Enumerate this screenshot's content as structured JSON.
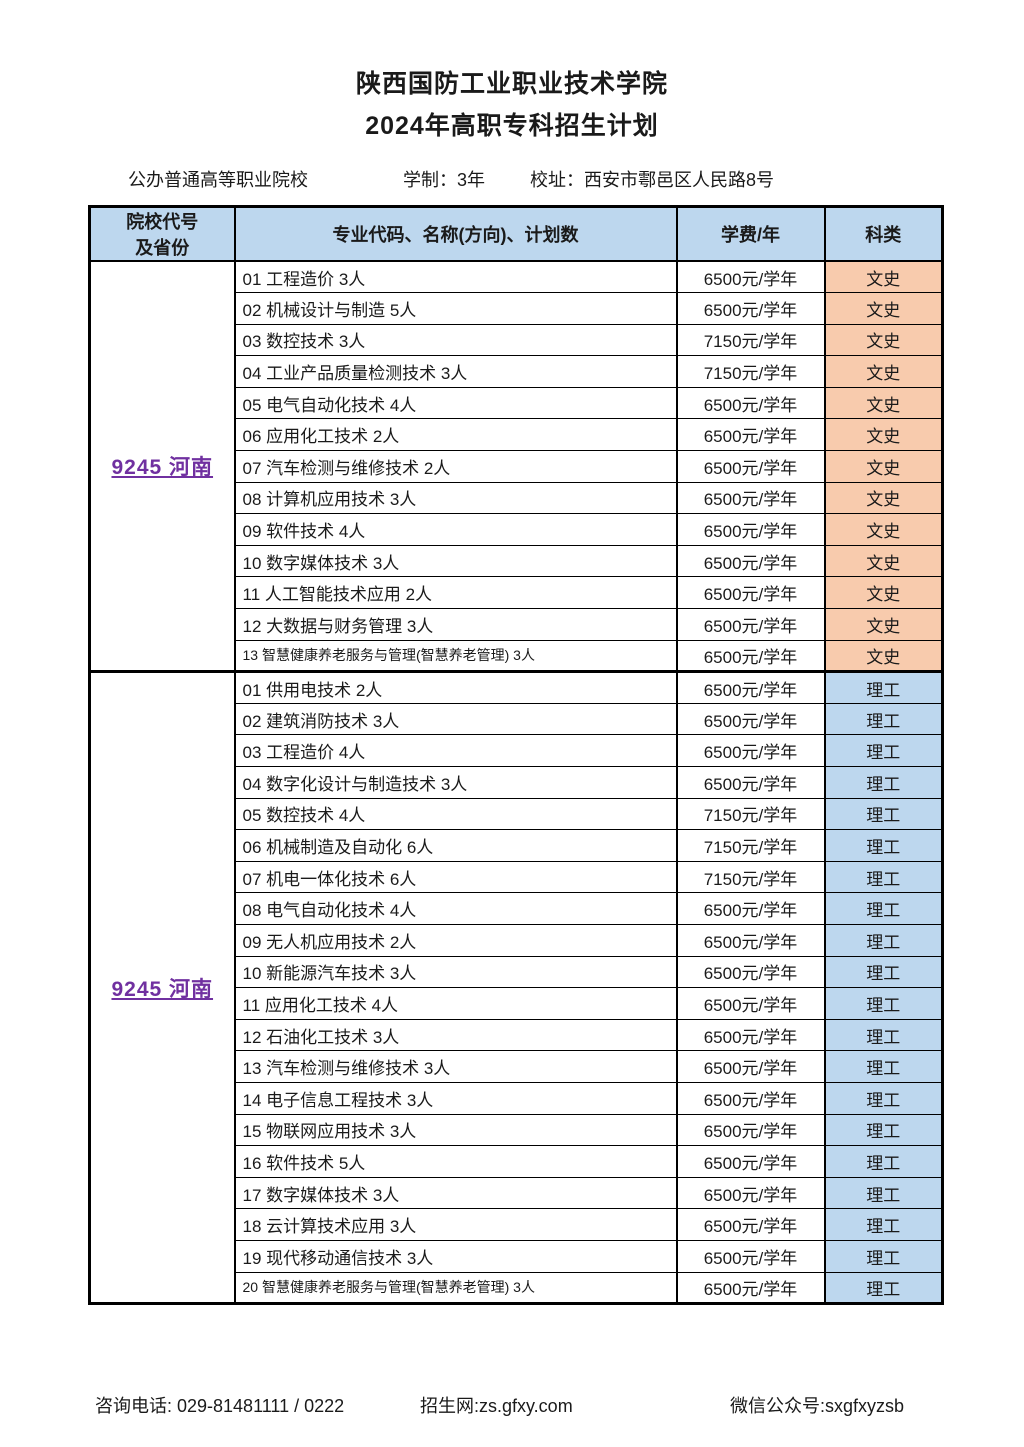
{
  "page": {
    "title": "陕西国防工业职业技术学院",
    "subtitle": "2024年高职专科招生计划"
  },
  "info": {
    "school_type": "公办普通高等职业院校",
    "duration": "学制：3年",
    "address": "校址：西安市鄠邑区人民路8号"
  },
  "colors": {
    "header_bg": "#BDD7EE",
    "wenshi_bg": "#F8CBAD",
    "ligong_bg": "#BDD7EE",
    "college_code_text": "#7030A0",
    "border": "#000000"
  },
  "table": {
    "headers": {
      "college_line1": "院校代号",
      "college_line2": "及省份",
      "major": "专业代码、名称(方向)、计划数",
      "tuition": "学费/年",
      "category": "科类"
    },
    "sections": [
      {
        "college": "9245 河南",
        "category": "文史",
        "category_bg": "#F8CBAD",
        "rows": [
          {
            "major": "01 工程造价 3人",
            "tuition": "6500元/学年"
          },
          {
            "major": "02 机械设计与制造 5人",
            "tuition": "6500元/学年"
          },
          {
            "major": "03 数控技术 3人",
            "tuition": "7150元/学年"
          },
          {
            "major": "04 工业产品质量检测技术 3人",
            "tuition": "7150元/学年"
          },
          {
            "major": "05 电气自动化技术 4人",
            "tuition": "6500元/学年"
          },
          {
            "major": "06 应用化工技术 2人",
            "tuition": "6500元/学年"
          },
          {
            "major": "07 汽车检测与维修技术 2人",
            "tuition": "6500元/学年"
          },
          {
            "major": "08 计算机应用技术 3人",
            "tuition": "6500元/学年"
          },
          {
            "major": "09 软件技术 4人",
            "tuition": "6500元/学年"
          },
          {
            "major": "10 数字媒体技术 3人",
            "tuition": "6500元/学年"
          },
          {
            "major": "11 人工智能技术应用 2人",
            "tuition": "6500元/学年"
          },
          {
            "major": "12 大数据与财务管理 3人",
            "tuition": "6500元/学年"
          },
          {
            "major": "13 智慧健康养老服务与管理(智慧养老管理) 3人",
            "tuition": "6500元/学年",
            "small": true
          }
        ]
      },
      {
        "college": "9245 河南",
        "category": "理工",
        "category_bg": "#BDD7EE",
        "rows": [
          {
            "major": "01 供用电技术 2人",
            "tuition": "6500元/学年"
          },
          {
            "major": "02 建筑消防技术 3人",
            "tuition": "6500元/学年"
          },
          {
            "major": "03 工程造价 4人",
            "tuition": "6500元/学年"
          },
          {
            "major": "04 数字化设计与制造技术 3人",
            "tuition": "6500元/学年"
          },
          {
            "major": "05 数控技术 4人",
            "tuition": "7150元/学年"
          },
          {
            "major": "06 机械制造及自动化 6人",
            "tuition": "7150元/学年"
          },
          {
            "major": "07 机电一体化技术 6人",
            "tuition": "7150元/学年"
          },
          {
            "major": "08 电气自动化技术 4人",
            "tuition": "6500元/学年"
          },
          {
            "major": "09 无人机应用技术 2人",
            "tuition": "6500元/学年"
          },
          {
            "major": "10 新能源汽车技术 3人",
            "tuition": "6500元/学年"
          },
          {
            "major": "11 应用化工技术 4人",
            "tuition": "6500元/学年"
          },
          {
            "major": "12 石油化工技术 3人",
            "tuition": "6500元/学年"
          },
          {
            "major": "13 汽车检测与维修技术 3人",
            "tuition": "6500元/学年"
          },
          {
            "major": "14 电子信息工程技术 3人",
            "tuition": "6500元/学年"
          },
          {
            "major": "15 物联网应用技术 3人",
            "tuition": "6500元/学年"
          },
          {
            "major": "16 软件技术 5人",
            "tuition": "6500元/学年"
          },
          {
            "major": "17 数字媒体技术 3人",
            "tuition": "6500元/学年"
          },
          {
            "major": "18 云计算技术应用 3人",
            "tuition": "6500元/学年"
          },
          {
            "major": "19 现代移动通信技术 3人",
            "tuition": "6500元/学年"
          },
          {
            "major": "20 智慧健康养老服务与管理(智慧养老管理) 3人",
            "tuition": "6500元/学年",
            "small": true
          }
        ]
      }
    ]
  },
  "footer": {
    "phone": "咨询电话: 029-81481111 / 0222",
    "website": "招生网:zs.gfxy.com",
    "wechat": "微信公众号:sxgfxyzsb"
  }
}
